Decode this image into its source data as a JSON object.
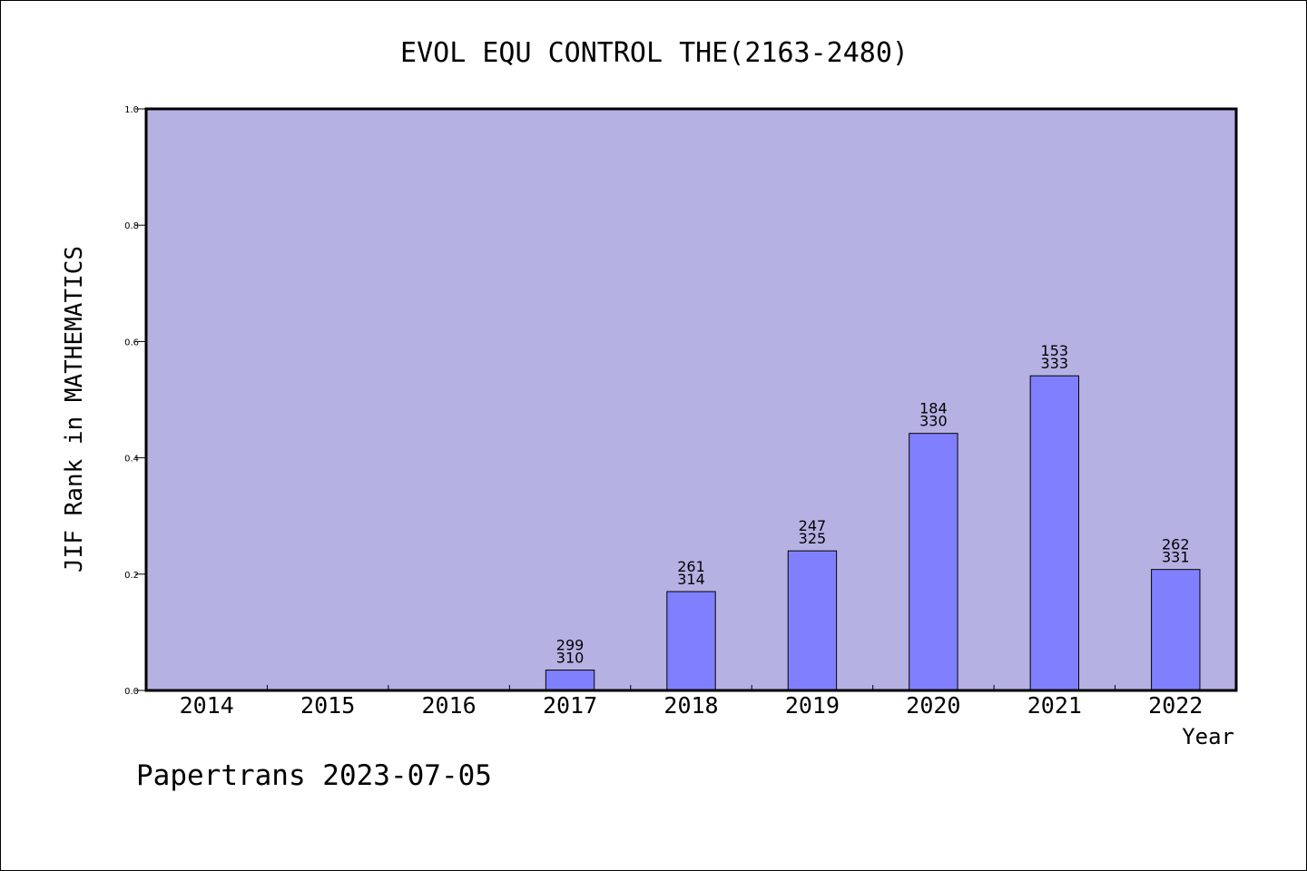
{
  "chart_data": {
    "type": "bar",
    "title": "EVOL EQU CONTROL THE(2163-2480)",
    "xlabel": "Year",
    "ylabel": "JIF Rank in MATHEMATICS",
    "ylim": [
      0,
      1.0
    ],
    "yticks": [
      "0.0",
      "0.2",
      "0.4",
      "0.6",
      "0.8",
      "1.0"
    ],
    "categories": [
      "2014",
      "2015",
      "2016",
      "2017",
      "2018",
      "2019",
      "2020",
      "2021",
      "2022"
    ],
    "values": [
      null,
      null,
      null,
      0.035,
      0.17,
      0.24,
      0.442,
      0.541,
      0.208
    ],
    "labels": [
      null,
      null,
      null,
      [
        "299",
        "310"
      ],
      [
        "261",
        "314"
      ],
      [
        "247",
        "325"
      ],
      [
        "184",
        "330"
      ],
      [
        "153",
        "333"
      ],
      [
        "262",
        "331"
      ]
    ],
    "grid": false,
    "legend": "none",
    "colors": {
      "plot_background": "#b6b1e3",
      "bar_fill": "#8080ff",
      "bar_stroke": "#000000",
      "axis": "#000000"
    }
  },
  "footer": "Papertrans 2023-07-05"
}
